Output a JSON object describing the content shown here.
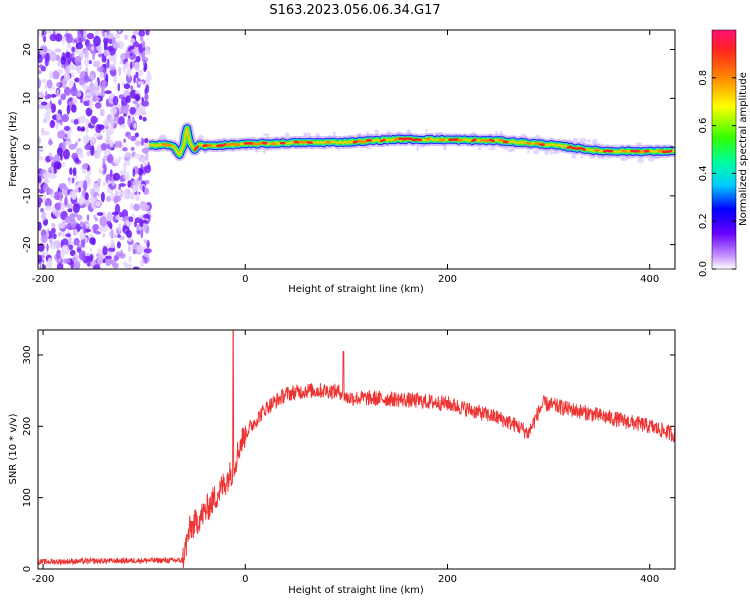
{
  "title": "S163.2023.056.06.34.G17",
  "chart_data": [
    {
      "type": "heatmap",
      "xlabel": "Height of straight line (km)",
      "ylabel": "Frequency (Hz)",
      "xlim": [
        -205,
        425
      ],
      "ylim": [
        -25,
        24
      ],
      "xticks": [
        -200,
        0,
        200,
        400
      ],
      "yticks": [
        -20,
        -10,
        0,
        10,
        20
      ],
      "colorbar": {
        "label": "Normalized spectral amplitude",
        "range": [
          0,
          1
        ],
        "ticks": [
          "0.0",
          "0.2",
          "0.4",
          "0.6",
          "0.8"
        ]
      },
      "noise_region": {
        "x": [
          -205,
          -95
        ],
        "frequency": [
          -25,
          24
        ]
      },
      "frequency_track": {
        "x": [
          -95,
          -80,
          -70,
          -65,
          -60,
          -58,
          -55,
          -50,
          -45,
          -40,
          0,
          50,
          100,
          150,
          200,
          250,
          300,
          320,
          350,
          400,
          425
        ],
        "y": [
          0.3,
          0.5,
          0.0,
          -1.5,
          1.0,
          4.5,
          0.8,
          -0.5,
          0.5,
          0.2,
          0.6,
          0.9,
          1.0,
          1.6,
          1.5,
          1.3,
          0.5,
          0.0,
          -0.8,
          -0.9,
          -0.8
        ]
      }
    },
    {
      "type": "line",
      "xlabel": "Height of straight line (km)",
      "ylabel": "SNR (10 * v/v)",
      "xlim": [
        -205,
        425
      ],
      "ylim": [
        0,
        335
      ],
      "xticks": [
        -200,
        0,
        200,
        400
      ],
      "yticks": [
        0,
        100,
        200,
        300
      ],
      "color": "#ee3333",
      "series": [
        {
          "x": [
            -205,
            -100,
            -62,
            -55,
            -40,
            -25,
            -12,
            -5,
            0,
            20,
            40,
            60,
            80,
            95,
            100,
            150,
            200,
            250,
            270,
            280,
            290,
            295,
            350,
            400,
            425
          ],
          "y": [
            10,
            12,
            12,
            55,
            80,
            110,
            140,
            175,
            190,
            225,
            245,
            250,
            250,
            248,
            240,
            238,
            232,
            212,
            200,
            190,
            220,
            232,
            215,
            200,
            188
          ]
        }
      ]
    }
  ]
}
